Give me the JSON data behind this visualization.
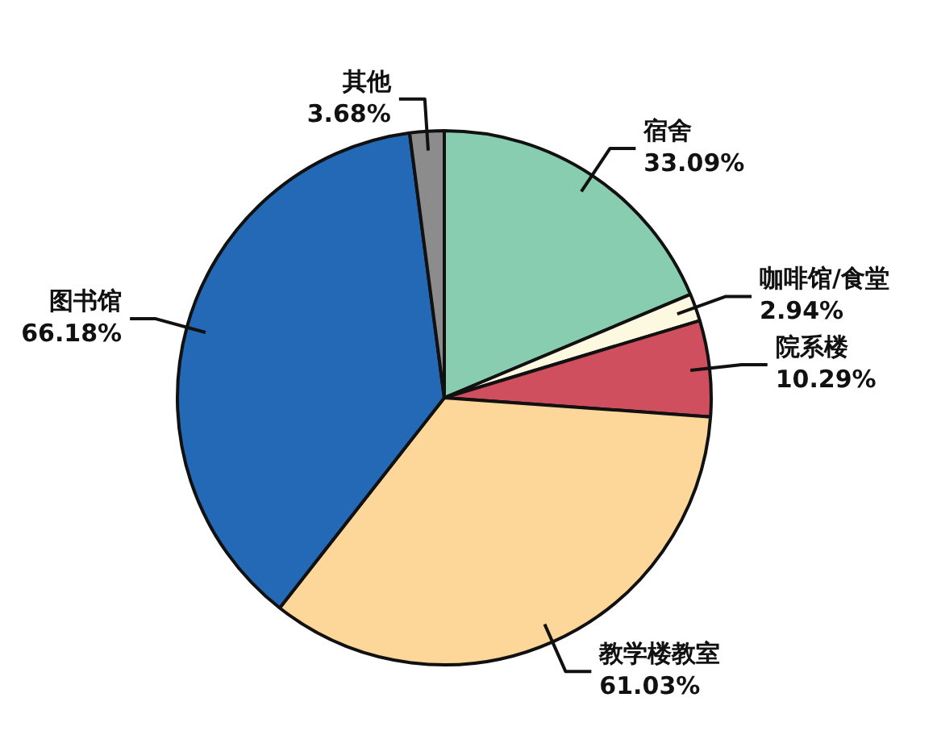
{
  "chart_data": {
    "type": "pie",
    "categories": [
      "宿舍",
      "咖啡馆/食堂",
      "院系楼",
      "教学楼教室",
      "图书馆",
      "其他"
    ],
    "values": [
      33.09,
      2.94,
      10.29,
      61.03,
      66.18,
      3.68
    ],
    "colors": [
      "#88cdb0",
      "#fdf8e0",
      "#d04f5e",
      "#fdd699",
      "#2369b6",
      "#8c8c8c"
    ],
    "value_labels": [
      "33.09%",
      "2.94%",
      "10.29%",
      "61.03%",
      "66.18%",
      "3.68%"
    ],
    "legend": false
  }
}
